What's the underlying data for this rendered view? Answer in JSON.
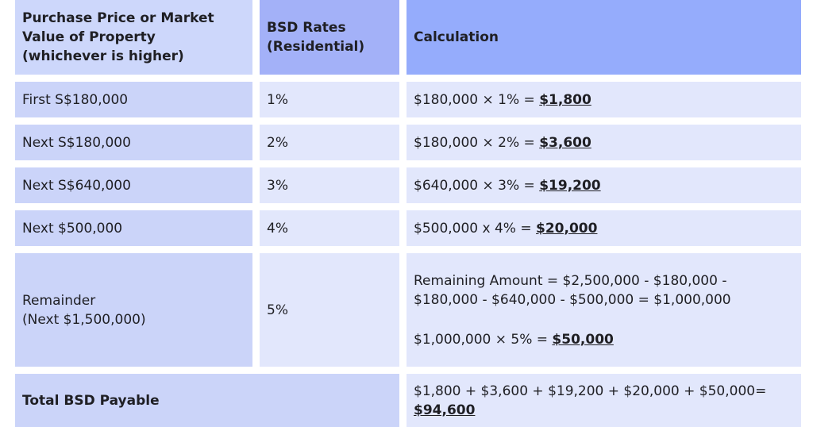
{
  "table": {
    "headers": {
      "col1": "Purchase Price or Market Value of Property (whichever is higher)",
      "col2": "BSD Rates (Residential)",
      "col3": "Calculation"
    },
    "rows": [
      {
        "tier": "First S$180,000",
        "rate": "1%",
        "calc_prefix": "$180,000 × 1% = ",
        "calc_result": "$1,800"
      },
      {
        "tier": "Next S$180,000",
        "rate": "2%",
        "calc_prefix": "$180,000 × 2% = ",
        "calc_result": "$3,600"
      },
      {
        "tier": "Next S$640,000",
        "rate": "3%",
        "calc_prefix": "$640,000 × 3% = ",
        "calc_result": "$19,200"
      },
      {
        "tier": "Next $500,000",
        "rate": "4%",
        "calc_prefix": "$500,000 x 4% = ",
        "calc_result": "$20,000"
      }
    ],
    "remainder": {
      "tier_line1": "Remainder",
      "tier_line2": "(Next $1,500,000)",
      "rate": "5%",
      "calc_line1": "Remaining Amount = $2,500,000 - $180,000 -",
      "calc_line2": "$180,000 - $640,000 - $500,000 = $1,000,000",
      "calc_line3_prefix": "$1,000,000 × 5% = ",
      "calc_line3_result": "$50,000"
    },
    "total": {
      "label": "Total BSD Payable",
      "calc_prefix": "$1,800 + $3,600 + $19,200 + $20,000 + $50,000=",
      "calc_result": "$94,600"
    }
  }
}
